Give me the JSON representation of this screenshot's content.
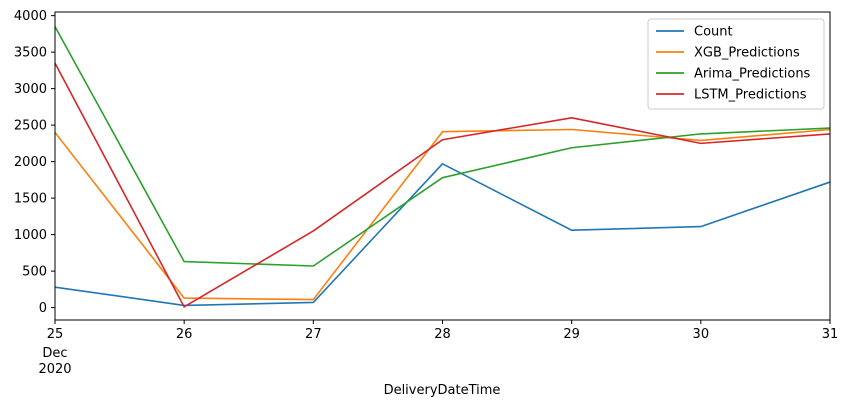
{
  "chart_data": {
    "type": "line",
    "xlabel": "DeliveryDateTime",
    "ylabel": "",
    "x": [
      "25",
      "26",
      "27",
      "28",
      "29",
      "30",
      "31"
    ],
    "x_sublabel": [
      "Dec",
      "2020"
    ],
    "ylim": [
      -170,
      4050
    ],
    "yticks": [
      0,
      500,
      1000,
      1500,
      2000,
      2500,
      3000,
      3500,
      4000
    ],
    "grid": false,
    "legend_position": "top-right",
    "series": [
      {
        "name": "Count",
        "color": "#1f77b4",
        "values": [
          280,
          30,
          70,
          1970,
          1060,
          1110,
          1720
        ]
      },
      {
        "name": "XGB_Predictions",
        "color": "#ff7f0e",
        "values": [
          2400,
          130,
          110,
          2410,
          2440,
          2290,
          2440
        ]
      },
      {
        "name": "Arima_Predictions",
        "color": "#2ca02c",
        "values": [
          3850,
          630,
          570,
          1780,
          2190,
          2380,
          2460
        ]
      },
      {
        "name": "LSTM_Predictions",
        "color": "#d62728",
        "values": [
          3350,
          10,
          1050,
          2300,
          2600,
          2250,
          2380
        ]
      }
    ]
  }
}
